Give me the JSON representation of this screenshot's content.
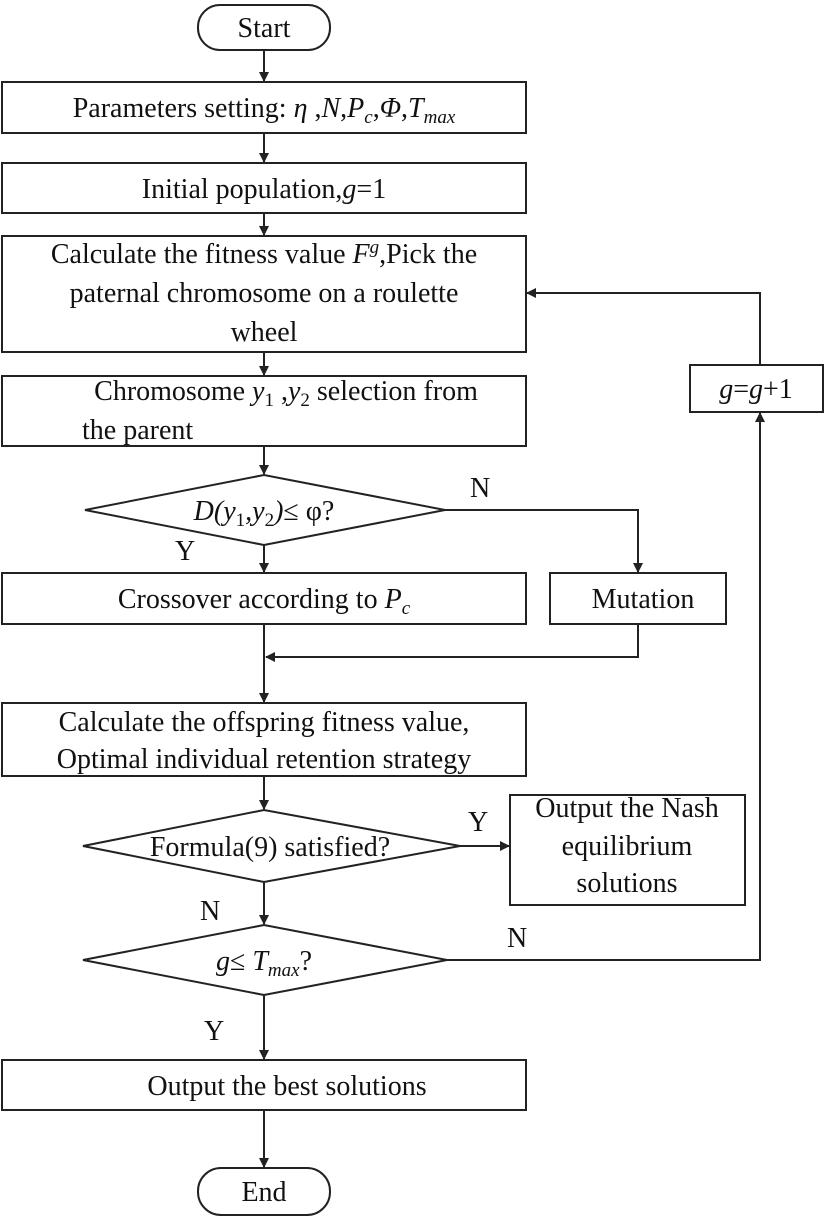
{
  "nodes": {
    "start": "Start",
    "params": {
      "label": "Parameters setting: ",
      "eta": "η",
      "sep": " ,",
      "n": "N",
      "c1": ",",
      "p": "P",
      "p_sub": "c",
      "c2": ",",
      "phi": "Φ",
      "c3": ",",
      "t": "T",
      "t_sub": "max"
    },
    "init": {
      "label": "Initial population,",
      "g": "g",
      "eq": "=1"
    },
    "fitness": {
      "line1a": "Calculate the fitness value ",
      "f": "F",
      "f_sup": "g",
      "line1b": ",Pick the",
      "line2": "paternal chromosome on a roulette",
      "line3": "wheel"
    },
    "chromosome": {
      "line1a": "Chromosome ",
      "y1": "y",
      "y1_sub": "1",
      "sep": " ,",
      "y2": "y",
      "y2_sub": "2",
      "line1b": " selection from",
      "line2": "the parent"
    },
    "decision1": {
      "d": "D(",
      "y1": "y",
      "y1_sub": "1",
      "comma": ",",
      "y2": "y",
      "y2_sub": "2",
      "rest": ")",
      "le": "≤ φ?"
    },
    "crossover": {
      "label": "Crossover according to ",
      "p": "P",
      "p_sub": "c"
    },
    "mutation": "Mutation",
    "offspring": {
      "line1": "Calculate the offspring fitness value,",
      "line2": "Optimal individual retention strategy"
    },
    "decision2": "Formula(9) satisfied?",
    "nash": {
      "line1": "Output the Nash",
      "line2": "equilibrium",
      "line3": "solutions"
    },
    "decision3": {
      "g": "g",
      "le": "≤ ",
      "t": "T",
      "t_sub": "max",
      "q": "?"
    },
    "increment": {
      "g": "g",
      "eq": "=",
      "g2": "g",
      "plus": "+1"
    },
    "best": "Output the best solutions",
    "end": "End"
  },
  "edge_labels": {
    "d1_no": "N",
    "d1_yes": "Y",
    "d2_yes": "Y",
    "d2_no": "N",
    "d3_no": "N",
    "d3_yes": "Y"
  }
}
